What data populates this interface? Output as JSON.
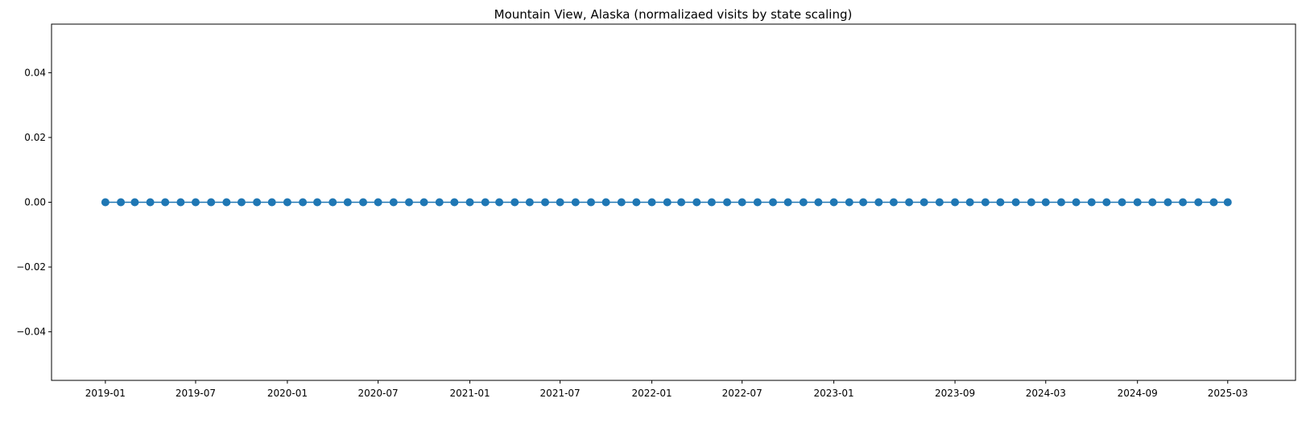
{
  "chart_data": {
    "type": "line",
    "title": "Mountain View, Alaska (normalizaed visits by state scaling)",
    "xlabel": "",
    "ylabel": "",
    "x_start": "2019-01",
    "x_end": "2025-03",
    "x_frequency": "monthly",
    "series": [
      {
        "color": "#1f77b4",
        "marker": "circle",
        "values": [
          0,
          0,
          0,
          0,
          0,
          0,
          0,
          0,
          0,
          0,
          0,
          0,
          0,
          0,
          0,
          0,
          0,
          0,
          0,
          0,
          0,
          0,
          0,
          0,
          0,
          0,
          0,
          0,
          0,
          0,
          0,
          0,
          0,
          0,
          0,
          0,
          0,
          0,
          0,
          0,
          0,
          0,
          0,
          0,
          0,
          0,
          0,
          0,
          0,
          0,
          0,
          0,
          0,
          0,
          0,
          0,
          0,
          0,
          0,
          0,
          0,
          0,
          0,
          0,
          0,
          0,
          0,
          0,
          0,
          0,
          0,
          0,
          0,
          0,
          0
        ]
      }
    ],
    "xlim": [
      "2018-09-15",
      "2025-07-15"
    ],
    "ylim": [
      -0.055,
      0.055
    ],
    "xticks": [
      "2019-01",
      "2019-07",
      "2020-01",
      "2020-07",
      "2021-01",
      "2021-07",
      "2022-01",
      "2022-07",
      "2023-01",
      "2023-09",
      "2024-03",
      "2024-09",
      "2025-03"
    ],
    "yticks": [
      {
        "value": 0.04,
        "label": "0.04"
      },
      {
        "value": 0.02,
        "label": "0.02"
      },
      {
        "value": 0.0,
        "label": "0.00"
      },
      {
        "value": -0.02,
        "label": "−0.02"
      },
      {
        "value": -0.04,
        "label": "−0.04"
      }
    ],
    "grid": false,
    "legend": "none"
  }
}
